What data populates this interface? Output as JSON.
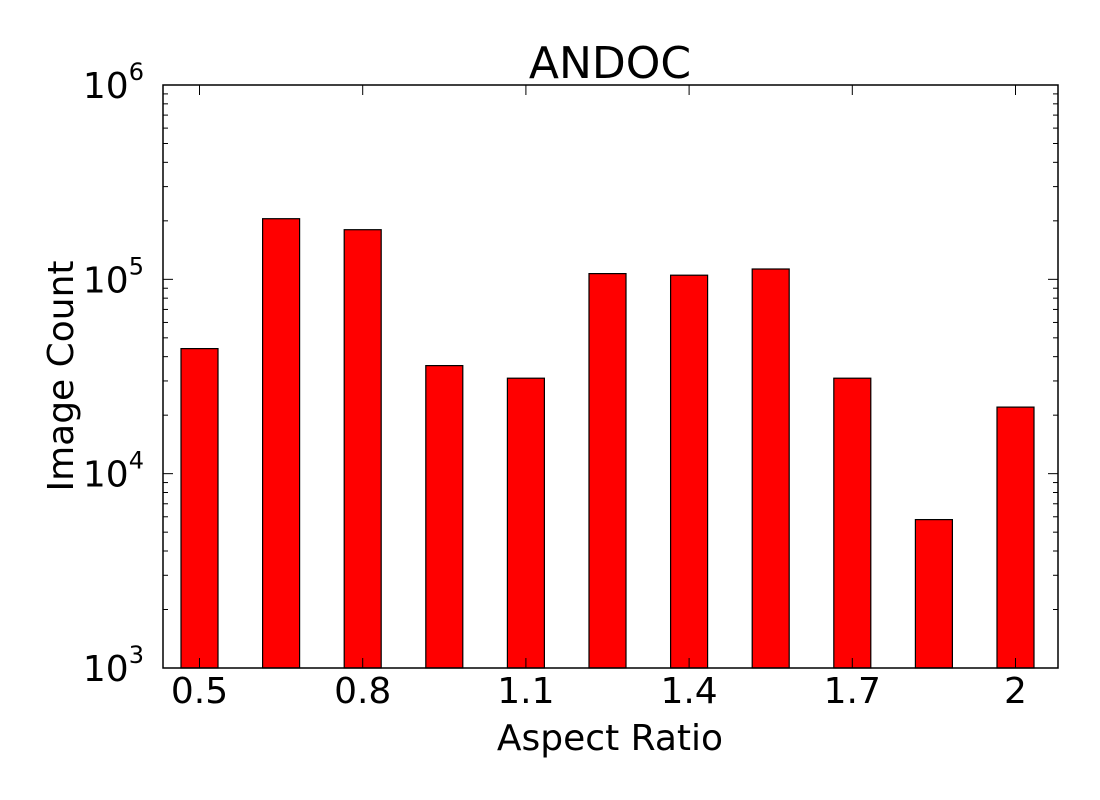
{
  "chart_data": {
    "type": "bar",
    "title": "ANDOC",
    "xlabel": "Aspect Ratio",
    "ylabel": "Image Count",
    "y_scale": "log",
    "ylim": [
      1000,
      1000000
    ],
    "y_ticks": [
      {
        "value": 1000,
        "base": "10",
        "exponent": "3"
      },
      {
        "value": 10000,
        "base": "10",
        "exponent": "4"
      },
      {
        "value": 100000,
        "base": "10",
        "exponent": "5"
      },
      {
        "value": 1000000,
        "base": "10",
        "exponent": "6"
      }
    ],
    "x_tick_labels": [
      "0.5",
      "0.8",
      "1.1",
      "1.4",
      "1.7",
      "2"
    ],
    "categories": [
      "0.5",
      "0.65",
      "0.8",
      "0.95",
      "1.1",
      "1.25",
      "1.4",
      "1.55",
      "1.7",
      "1.85",
      "2"
    ],
    "values": [
      44000,
      205000,
      180000,
      36000,
      31000,
      107000,
      105000,
      113000,
      31000,
      5800,
      22000
    ],
    "bar_color": "#ff0000",
    "grid": false
  }
}
